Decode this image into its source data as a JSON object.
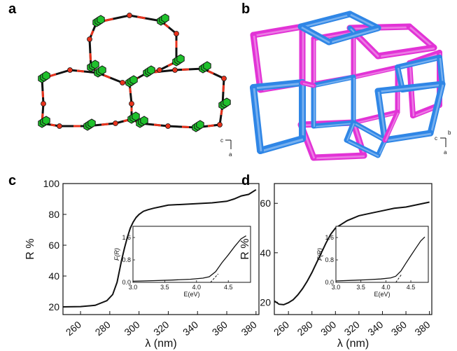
{
  "panels": {
    "a": {
      "letter": "a",
      "axes": {
        "h": "c",
        "v": "a"
      }
    },
    "b": {
      "letter": "b",
      "axes": {
        "h": "c",
        "top": "b",
        "v": "a"
      }
    },
    "c": {
      "letter": "c"
    },
    "d": {
      "letter": "d"
    }
  },
  "colors": {
    "magenta": "#e233d6",
    "blue": "#2f86e6",
    "green": "#1fc12c",
    "red": "#e8331d",
    "black": "#111111"
  },
  "chart_data": [
    {
      "type": "line",
      "panel": "c",
      "xlabel": "λ (nm)",
      "ylabel": "R %",
      "xlim": [
        248,
        382
      ],
      "ylim": [
        15,
        100
      ],
      "xticks": [
        260,
        280,
        300,
        320,
        340,
        360,
        380
      ],
      "yticks": [
        20,
        40,
        60,
        80,
        100
      ],
      "series": [
        {
          "x": [
            248,
            260,
            270,
            278,
            282,
            285,
            288,
            290,
            292,
            294,
            296,
            298,
            300,
            303,
            306,
            310,
            315,
            320,
            330,
            340,
            350,
            355,
            360,
            365,
            370,
            375,
            380
          ],
          "y": [
            20,
            20.2,
            21,
            24,
            28,
            36,
            50,
            58,
            65,
            71,
            75,
            78,
            80,
            82,
            83,
            84,
            85,
            86,
            86.5,
            87,
            87.5,
            88,
            88.5,
            90,
            92,
            93,
            96
          ]
        }
      ],
      "inset": {
        "xlabel": "E(eV)",
        "ylabel": "F(R)",
        "xlim": [
          3.0,
          4.85
        ],
        "ylim": [
          0,
          2.0
        ],
        "xticks": [
          3.0,
          3.5,
          4.0,
          4.5
        ],
        "xtick_labels": [
          "3.0",
          "3.5",
          "4.0",
          "4.5"
        ],
        "yticks": [
          0.0,
          0.8,
          1.6
        ],
        "ytick_labels": [
          "0.0",
          "0.8",
          "1.6"
        ],
        "series": [
          {
            "x": [
              3.0,
              3.3,
              3.6,
              3.9,
              4.1,
              4.2,
              4.3,
              4.4,
              4.5,
              4.6,
              4.7,
              4.78
            ],
            "y": [
              0.04,
              0.06,
              0.08,
              0.11,
              0.15,
              0.2,
              0.38,
              0.7,
              0.98,
              1.28,
              1.55,
              1.66
            ]
          }
        ],
        "fit": {
          "x": [
            4.22,
            4.34
          ],
          "y": [
            0.0,
            0.3
          ]
        }
      }
    },
    {
      "type": "line",
      "panel": "d",
      "xlabel": "λ (nm)",
      "ylabel": "R %",
      "xlim": [
        248,
        382
      ],
      "ylim": [
        15,
        68
      ],
      "xticks": [
        260,
        280,
        300,
        320,
        340,
        360,
        380
      ],
      "yticks": [
        20,
        40,
        60
      ],
      "series": [
        {
          "x": [
            248,
            252,
            256,
            260,
            264,
            268,
            272,
            276,
            280,
            284,
            288,
            292,
            296,
            300,
            305,
            310,
            315,
            320,
            330,
            340,
            350,
            360,
            370,
            380
          ],
          "y": [
            20.5,
            19.2,
            19,
            19.8,
            21,
            23,
            25.5,
            28.5,
            32,
            36,
            40,
            44,
            47.5,
            50,
            51.5,
            53,
            54,
            55,
            56,
            57,
            58,
            58.5,
            59.5,
            60.5
          ]
        }
      ],
      "inset": {
        "xlabel": "E(eV)",
        "ylabel": "F(R)",
        "xlim": [
          3.0,
          4.85
        ],
        "ylim": [
          0,
          2.0
        ],
        "xticks": [
          3.0,
          3.5,
          4.0,
          4.5
        ],
        "xtick_labels": [
          "3.0",
          "3.5",
          "4.0",
          "4.5"
        ],
        "yticks": [
          0.0,
          0.8,
          1.6
        ],
        "ytick_labels": [
          "0.0",
          "0.8",
          "1.6"
        ],
        "series": [
          {
            "x": [
              3.0,
              3.3,
              3.6,
              3.9,
              4.1,
              4.2,
              4.3,
              4.4,
              4.5,
              4.6,
              4.7,
              4.78
            ],
            "y": [
              0.05,
              0.07,
              0.09,
              0.12,
              0.16,
              0.22,
              0.4,
              0.68,
              0.95,
              1.22,
              1.48,
              1.62
            ]
          }
        ],
        "fit": {
          "x": [
            4.2,
            4.32
          ],
          "y": [
            0.0,
            0.3
          ]
        }
      }
    }
  ]
}
